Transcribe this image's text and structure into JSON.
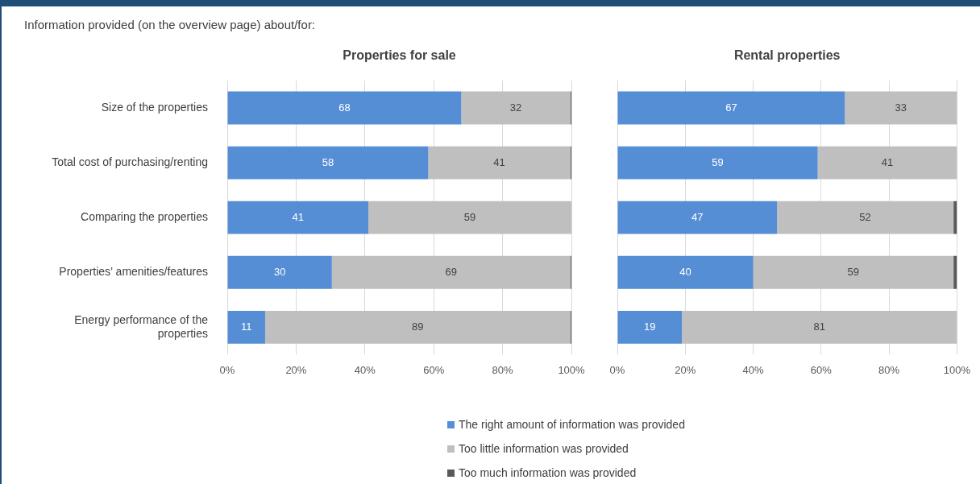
{
  "chart_data": [
    {
      "type": "bar",
      "orientation": "horizontal",
      "stacked": true,
      "title": "Properties for sale",
      "annotations": [
        "Information provided (on the overview page) about/for:"
      ],
      "categories": [
        "Size of the properties",
        "Total cost of purchasing/renting",
        "Comparing the properties",
        "Properties’ amenities/features",
        "Energy performance of the properties"
      ],
      "xlim": [
        0,
        100
      ],
      "xticks": [
        {
          "value": 0,
          "label": "0%"
        },
        {
          "value": 20,
          "label": "20%"
        },
        {
          "value": 40,
          "label": "40%"
        },
        {
          "value": 60,
          "label": "60%"
        },
        {
          "value": 80,
          "label": "80%"
        },
        {
          "value": 100,
          "label": "100%"
        }
      ],
      "grid": "x",
      "legend": "bottom",
      "series": [
        {
          "name": "The right amount of information was provided",
          "color": "#558ed5",
          "values": [
            68,
            58.4,
            41,
            30.4,
            11
          ],
          "value_labels": [
            "68",
            "58",
            "41",
            "30",
            "11"
          ]
        },
        {
          "name": "Too little information was provided",
          "color": "#bfbfbf",
          "values": [
            31.7,
            41.3,
            59,
            69.3,
            88.7
          ],
          "value_labels": [
            "32",
            "41",
            "59",
            "69",
            "89"
          ]
        },
        {
          "name": "Too much information was provided",
          "color": "#595959",
          "values": [
            0.3,
            0.3,
            null,
            0.3,
            0.3
          ],
          "value_labels": [
            null,
            null,
            null,
            null,
            null
          ]
        }
      ]
    },
    {
      "type": "bar",
      "orientation": "horizontal",
      "stacked": true,
      "title": "Rental properties",
      "categories": [
        null,
        null,
        null,
        null,
        null
      ],
      "tick_labels": "x",
      "xlim": [
        0,
        100
      ],
      "xticks": [
        {
          "value": 0,
          "label": "0%"
        },
        {
          "value": 20,
          "label": "20%"
        },
        {
          "value": 40,
          "label": "40%"
        },
        {
          "value": 60,
          "label": "60%"
        },
        {
          "value": 80,
          "label": "80%"
        },
        {
          "value": 100,
          "label": "100%"
        }
      ],
      "grid": "x",
      "series": [
        {
          "color": "#558ed5",
          "values": [
            67,
            59,
            47,
            40,
            19
          ],
          "value_labels": [
            "67",
            "59",
            "47",
            "40",
            "19"
          ]
        },
        {
          "color": "#bfbfbf",
          "values": [
            33,
            41,
            52,
            59,
            81
          ],
          "value_labels": [
            "33",
            "41",
            "52",
            "59",
            "81"
          ]
        },
        {
          "color": "#595959",
          "values": [
            null,
            null,
            1,
            1,
            null
          ],
          "value_labels": [
            null,
            null,
            null,
            null,
            null
          ]
        }
      ]
    }
  ]
}
